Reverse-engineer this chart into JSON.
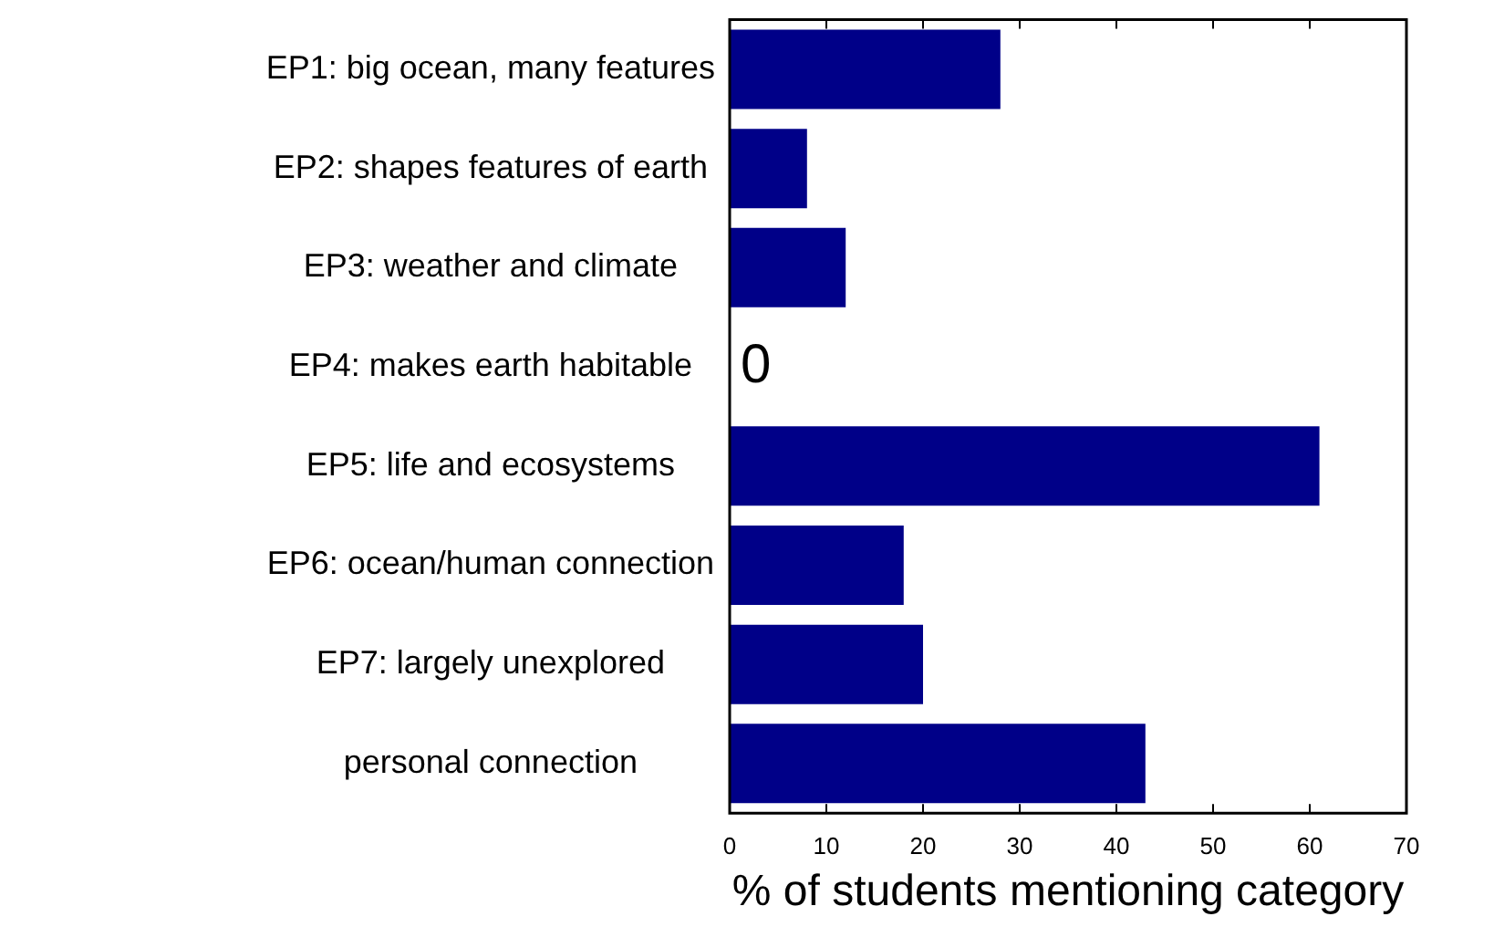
{
  "chart_data": {
    "type": "bar",
    "orientation": "horizontal",
    "xlabel": "% of students mentioning category",
    "categories": [
      "EP1: big ocean, many features",
      "EP2: shapes features of earth",
      "EP3: weather and climate",
      "EP4: makes earth habitable",
      "EP5: life and ecosystems",
      "EP6: ocean/human connection",
      "EP7: largely unexplored",
      "personal connection"
    ],
    "values": [
      28,
      8,
      12,
      0,
      61,
      18,
      20,
      43
    ],
    "value_labels": [
      null,
      null,
      null,
      "0",
      null,
      null,
      null,
      null
    ],
    "color": "#000088",
    "xlim": [
      0,
      70
    ],
    "xticks": [
      0,
      10,
      20,
      30,
      40,
      50,
      60,
      70
    ],
    "grid": false,
    "legend": false
  }
}
